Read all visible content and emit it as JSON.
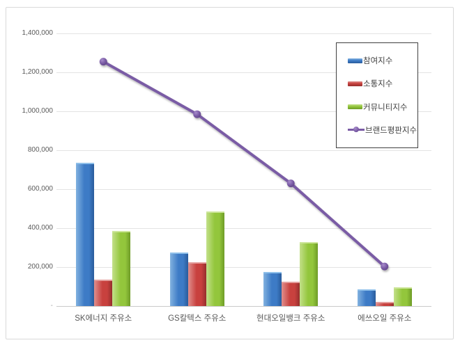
{
  "frame": {
    "border_color": "#d9d9d9",
    "background": "#ffffff"
  },
  "chart_data": {
    "type": "bar",
    "subtype": "grouped bars with overlay line series",
    "title": "",
    "xlabel": "",
    "ylabel": "",
    "categories": [
      "SK에너지 주유소",
      "GS칼텍스 주유소",
      "현대오일뱅크 주유소",
      "에쓰오일 주유소"
    ],
    "series": [
      {
        "name": "참여지수",
        "type": "bar",
        "color": "#3d7bc6",
        "color_light": "#82b2e0",
        "color_dark": "#2a5c9b",
        "color_top": "#8fc0ea",
        "values": [
          735000,
          275000,
          175000,
          85000
        ]
      },
      {
        "name": "소통지수",
        "type": "bar",
        "color": "#c8413e",
        "color_light": "#e08f8d",
        "color_dark": "#952f2d",
        "color_top": "#e49f9d",
        "values": [
          135000,
          225000,
          125000,
          20000
        ]
      },
      {
        "name": "커뮤니티지수",
        "type": "bar",
        "color": "#93c63c",
        "color_light": "#c3e08a",
        "color_dark": "#6e9b27",
        "color_top": "#cde69b",
        "values": [
          385000,
          485000,
          330000,
          98000
        ]
      },
      {
        "name": "브랜드평판지수",
        "type": "line",
        "color": "#7a5ba5",
        "marker_color_light": "#a78ccb",
        "marker_color_dark": "#5d4383",
        "values": [
          1255000,
          985000,
          630000,
          203000
        ]
      }
    ],
    "ylim": [
      0,
      1400000
    ],
    "ytick_step": 200000,
    "ytick_labels": [
      "-",
      "200,000",
      "400,000",
      "600,000",
      "800,000",
      "1,000,000",
      "1,200,000",
      "1,400,000"
    ],
    "grid": true,
    "gridline_color": "#e3e3e3",
    "axis_line_color": "#c9c9c9",
    "axis_label_color": "#595959",
    "legend_position": "upper-right",
    "legend_border_color": "#3f3f3f"
  }
}
